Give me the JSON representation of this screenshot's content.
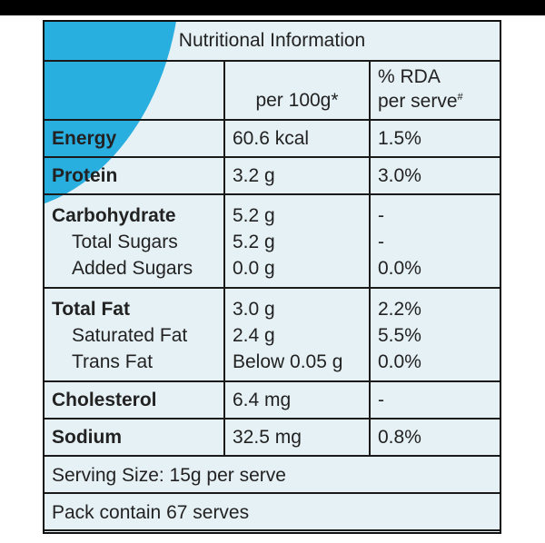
{
  "title": "Nutritional Information",
  "header": {
    "per100_label": "per 100g*",
    "rda_line1": "% RDA",
    "rda_line2": "per serve",
    "rda_mark": "#"
  },
  "rows": {
    "energy": {
      "name": "Energy",
      "per100": "60.6 kcal",
      "rda": "1.5%"
    },
    "protein": {
      "name": "Protein",
      "per100": "3.2 g",
      "rda": "3.0%"
    },
    "carbohydrate": {
      "name": "Carbohydrate",
      "per100": "5.2 g",
      "rda": "-"
    },
    "total_sugars": {
      "name": "Total Sugars",
      "per100": "5.2 g",
      "rda": "-"
    },
    "added_sugars": {
      "name": "Added Sugars",
      "per100": "0.0 g",
      "rda": "0.0%"
    },
    "total_fat": {
      "name": "Total Fat",
      "per100": "3.0 g",
      "rda": "2.2%"
    },
    "saturated_fat": {
      "name": "Saturated Fat",
      "per100": "2.4 g",
      "rda": "5.5%"
    },
    "trans_fat": {
      "name": "Trans Fat",
      "per100": "Below 0.05 g",
      "rda": "0.0%"
    },
    "cholesterol": {
      "name": "Cholesterol",
      "per100": "6.4 mg",
      "rda": "-"
    },
    "sodium": {
      "name": "Sodium",
      "per100": "32.5 mg",
      "rda": "0.8%"
    }
  },
  "footer": {
    "serving_size": "Serving Size: 15g per serve",
    "pack_contains": "Pack contain 67 serves"
  },
  "colors": {
    "panel_background": "#e6f1f5",
    "accent_swoosh": "#29aee0",
    "rule_color": "#1a1a1a"
  }
}
